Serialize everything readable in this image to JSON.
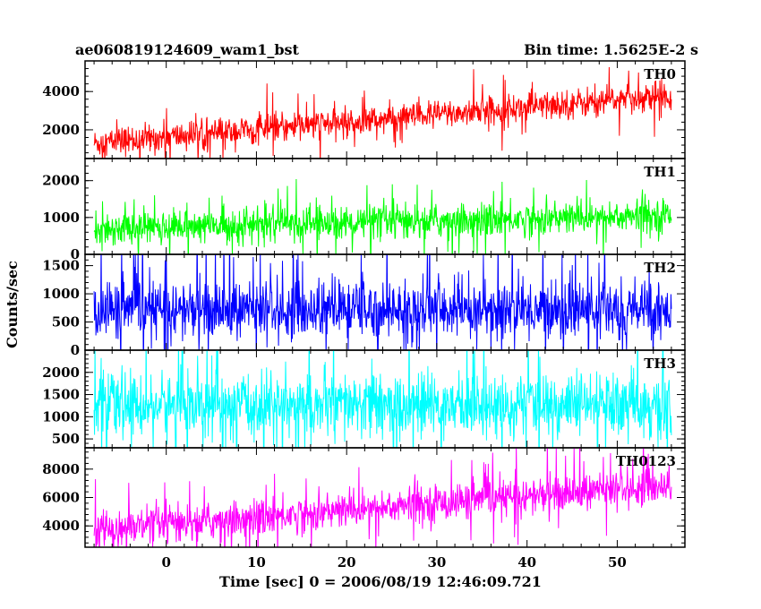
{
  "header": {
    "title": "ae060819124609_wam1_bst",
    "bin_time": "Bin time: 1.5625E-2 s"
  },
  "chart_data": [
    {
      "type": "line",
      "name": "TH0",
      "color": "#ff0000",
      "trend": [
        1300,
        3800
      ],
      "noise": 380,
      "spikes": 0.45,
      "ylim": [
        500,
        5600
      ],
      "yticks": [
        2000,
        4000
      ],
      "ytick_labels": [
        "2000",
        "4000"
      ]
    },
    {
      "type": "line",
      "name": "TH1",
      "color": "#00ff00",
      "trend": [
        700,
        1050
      ],
      "noise": 230,
      "spikes": 0.4,
      "ylim": [
        0,
        2600
      ],
      "yticks": [
        0,
        1000,
        2000
      ],
      "ytick_labels": [
        "0",
        "1000",
        "2000"
      ]
    },
    {
      "type": "line",
      "name": "TH2",
      "color": "#0000ff",
      "trend": [
        720,
        720
      ],
      "noise": 260,
      "spikes": 0.55,
      "ylim": [
        0,
        1700
      ],
      "yticks": [
        0,
        500,
        1000,
        1500
      ],
      "ytick_labels": [
        "0",
        "500",
        "1000",
        "1500"
      ]
    },
    {
      "type": "line",
      "name": "TH3",
      "color": "#00ffff",
      "trend": [
        1250,
        1250
      ],
      "noise": 360,
      "spikes": 0.6,
      "ylim": [
        300,
        2500
      ],
      "yticks": [
        500,
        1000,
        1500,
        2000
      ],
      "ytick_labels": [
        "500",
        "1000",
        "1500",
        "2000"
      ]
    },
    {
      "type": "line",
      "name": "TH0123",
      "color": "#ff00ff",
      "trend": [
        3700,
        6900
      ],
      "noise": 650,
      "spikes": 0.45,
      "ylim": [
        2500,
        9500
      ],
      "yticks": [
        4000,
        6000,
        8000
      ],
      "ytick_labels": [
        "4000",
        "6000",
        "8000"
      ]
    }
  ],
  "x_axis": {
    "xlim": [
      -9,
      57.5
    ],
    "data_range": [
      -8,
      56
    ],
    "ticks": [
      0,
      10,
      20,
      30,
      40,
      50
    ],
    "tick_labels": [
      "0",
      "10",
      "20",
      "30",
      "40",
      "50"
    ],
    "minor_step": 2,
    "label": "Time [sec] 0 = 2006/08/19 12:46:09.721"
  },
  "ylabel": "Counts/sec"
}
